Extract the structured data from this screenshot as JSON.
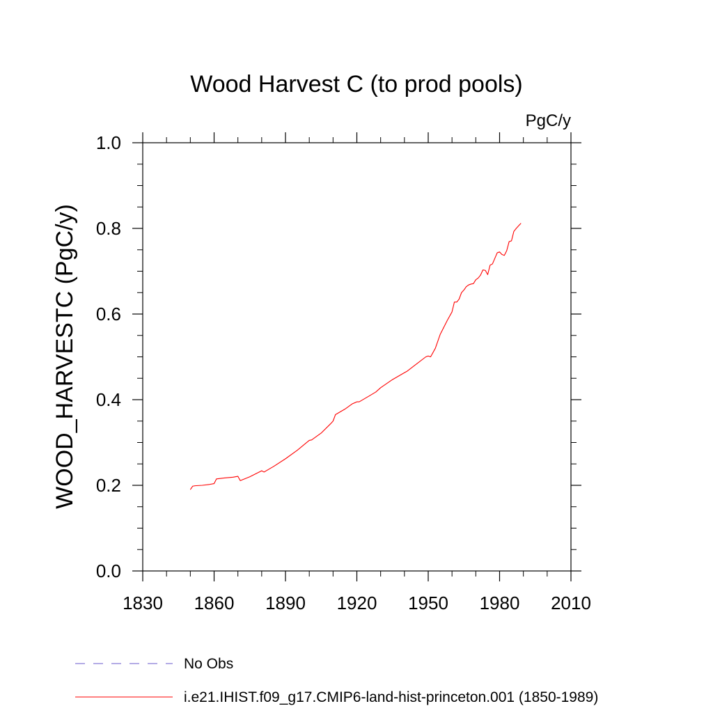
{
  "chart_data": {
    "type": "line",
    "title": "Wood Harvest C (to prod pools)",
    "units": "PgC/y",
    "ylabel": "WOOD_HARVESTC  (PgC/y)",
    "xlabel": "",
    "xlim": [
      1830,
      2010
    ],
    "ylim": [
      0.0,
      1.0
    ],
    "xticks": [
      1830,
      1860,
      1890,
      1920,
      1950,
      1980,
      2010
    ],
    "xtick_labels": [
      "1830",
      "1860",
      "1890",
      "1920",
      "1950",
      "1980",
      "2010"
    ],
    "yticks": [
      0.0,
      0.2,
      0.4,
      0.6,
      0.8,
      1.0
    ],
    "ytick_labels": [
      "0.0",
      "0.2",
      "0.4",
      "0.6",
      "0.8",
      "1.0"
    ],
    "grid": false,
    "legend_position": "bottom-left",
    "series": [
      {
        "name": "No Obs",
        "color": "#6a5acd",
        "style": "dashed",
        "x": [],
        "y": []
      },
      {
        "name": "i.e21.IHIST.f09_g17.CMIP6-land-hist-princeton.001 (1850-1989)",
        "color": "#ff0000",
        "style": "solid",
        "x": [
          1850,
          1851,
          1852,
          1855,
          1858,
          1860,
          1861,
          1864,
          1868,
          1870,
          1871,
          1875,
          1880,
          1881,
          1885,
          1890,
          1895,
          1900,
          1901,
          1905,
          1909,
          1910,
          1911,
          1915,
          1918,
          1920,
          1921,
          1925,
          1928,
          1930,
          1935,
          1940,
          1941,
          1945,
          1949,
          1950,
          1951,
          1953,
          1955,
          1958,
          1960,
          1961,
          1962,
          1963,
          1964,
          1965,
          1966,
          1967,
          1968,
          1969,
          1970,
          1971,
          1972,
          1973,
          1974,
          1975,
          1976,
          1977,
          1978,
          1979,
          1980,
          1981,
          1982,
          1983,
          1984,
          1985,
          1986,
          1987,
          1988,
          1989
        ],
        "y": [
          0.19,
          0.198,
          0.199,
          0.2,
          0.202,
          0.204,
          0.215,
          0.217,
          0.219,
          0.221,
          0.211,
          0.22,
          0.234,
          0.231,
          0.244,
          0.262,
          0.282,
          0.305,
          0.306,
          0.322,
          0.344,
          0.35,
          0.365,
          0.378,
          0.39,
          0.395,
          0.395,
          0.408,
          0.418,
          0.428,
          0.447,
          0.463,
          0.466,
          0.483,
          0.5,
          0.502,
          0.5,
          0.52,
          0.552,
          0.585,
          0.605,
          0.628,
          0.628,
          0.635,
          0.65,
          0.656,
          0.664,
          0.668,
          0.67,
          0.671,
          0.68,
          0.684,
          0.691,
          0.703,
          0.702,
          0.692,
          0.714,
          0.717,
          0.73,
          0.743,
          0.745,
          0.739,
          0.737,
          0.748,
          0.769,
          0.771,
          0.793,
          0.8,
          0.806,
          0.812
        ]
      }
    ]
  }
}
